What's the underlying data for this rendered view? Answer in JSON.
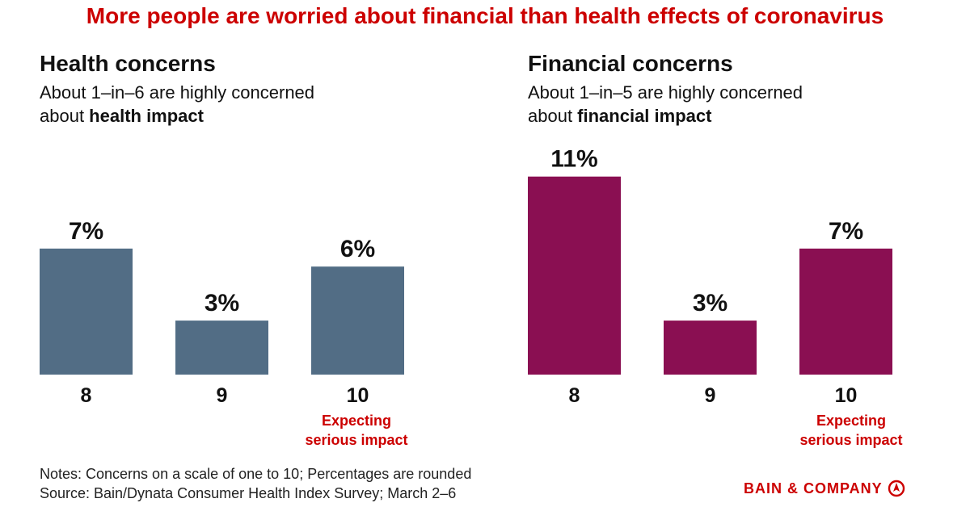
{
  "title": "More people are worried about financial than health effects of coronavirus",
  "panels": [
    {
      "heading": "Health concerns",
      "subtitle_plain": "About 1–in–6 are highly concerned",
      "subtitle_prefix": "about ",
      "subtitle_bold": "health impact"
    },
    {
      "heading": "Financial concerns",
      "subtitle_plain": "About 1–in–5 are highly concerned",
      "subtitle_prefix": "about ",
      "subtitle_bold": "financial impact"
    }
  ],
  "annotation": {
    "line1": "Expecting",
    "line2": "serious impact"
  },
  "notes": {
    "line1": "Notes: Concerns on a scale of one to 10; Percentages are rounded",
    "line2": "Source: Bain/Dynata Consumer Health Index Survey; March 2–6"
  },
  "logo": {
    "text": "BAIN & COMPANY",
    "icon": "bain-compass-icon"
  },
  "colors": {
    "title": "#cc0000",
    "health_bar": "#526d85",
    "financial_bar": "#8a0f52",
    "annotation": "#cc0000"
  },
  "chart_data": [
    {
      "type": "bar",
      "title": "Health concerns",
      "categories": [
        "8",
        "9",
        "10"
      ],
      "values": [
        7,
        3,
        6
      ],
      "value_labels": [
        "7%",
        "3%",
        "6%"
      ],
      "ylim": [
        0,
        11
      ]
    },
    {
      "type": "bar",
      "title": "Financial concerns",
      "categories": [
        "8",
        "9",
        "10"
      ],
      "values": [
        11,
        3,
        7
      ],
      "value_labels": [
        "11%",
        "3%",
        "7%"
      ],
      "ylim": [
        0,
        11
      ]
    }
  ]
}
